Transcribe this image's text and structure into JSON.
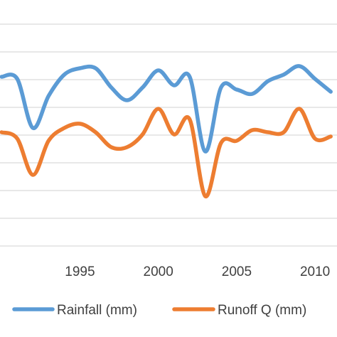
{
  "chart_data": {
    "type": "line",
    "x": [
      1990,
      1991,
      1992,
      1993,
      1994,
      1995,
      1996,
      1997,
      1998,
      1999,
      2000,
      2001,
      2002,
      2003,
      2004,
      2005,
      2006,
      2007,
      2008,
      2009,
      2010,
      2011
    ],
    "x_ticks": [
      "1995",
      "2000",
      "2005",
      "2010"
    ],
    "xlim": [
      1989.9,
      2011.4
    ],
    "ylim": [
      0,
      100
    ],
    "grid": "horizontal",
    "legend_position": "bottom",
    "colors": {
      "Rainfall (mm)": "#5B9BD5",
      "Runoff Q  (mm)": "#ED7D31"
    },
    "series": [
      {
        "name": "Rainfall (mm)",
        "values": [
          81,
          80,
          57,
          72,
          82,
          85,
          85,
          76,
          70,
          76,
          84,
          77,
          81,
          46,
          76,
          75,
          73,
          79,
          82,
          86,
          80,
          74
        ]
      },
      {
        "name": "Runoff Q  (mm)",
        "values": [
          55,
          52,
          35,
          51,
          57,
          59,
          55,
          48,
          48,
          54,
          66,
          54,
          61,
          25,
          50,
          51,
          56,
          55,
          55,
          66,
          52,
          53
        ]
      }
    ]
  }
}
